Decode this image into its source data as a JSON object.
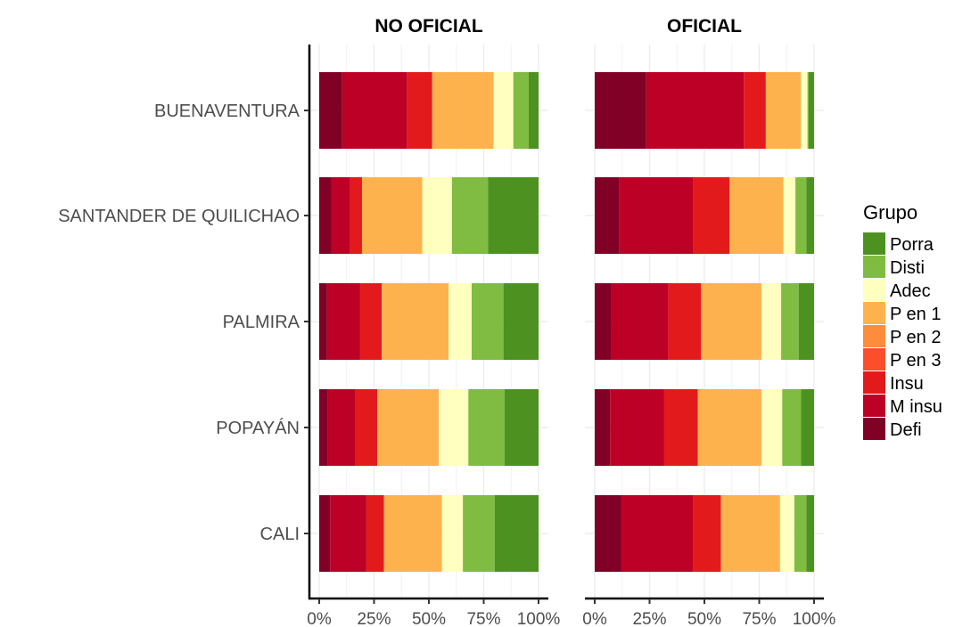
{
  "chart_data": {
    "type": "bar",
    "orientation": "horizontal",
    "stacked": true,
    "normalized": true,
    "categories": [
      "BUENAVENTURA",
      "SANTANDER DE QUILICHAO",
      "PALMIRA",
      "POPAYÁN",
      "CALI"
    ],
    "facets": [
      "NO OFICIAL",
      "OFICIAL"
    ],
    "x_ticks": [
      "0%",
      "25%",
      "50%",
      "75%",
      "100%"
    ],
    "xlim": [
      0,
      100
    ],
    "grid": true,
    "legend": {
      "title": "Grupo",
      "placement": "right",
      "items": [
        {
          "name": "Porra",
          "color": "#4d9221"
        },
        {
          "name": "Disti",
          "color": "#7fbc41"
        },
        {
          "name": "Adec",
          "color": "#ffffbf"
        },
        {
          "name": "P en 1",
          "color": "#fdb24e"
        },
        {
          "name": "P en 2",
          "color": "#fd8d3c"
        },
        {
          "name": "P en 3",
          "color": "#fc4e2a"
        },
        {
          "name": "Insu",
          "color": "#e31a1c"
        },
        {
          "name": "M insu",
          "color": "#bd0026"
        },
        {
          "name": "Defi",
          "color": "#800026"
        }
      ]
    },
    "stack_order": [
      "Defi",
      "M insu",
      "Insu",
      "P en 3",
      "P en 2",
      "P en 1",
      "Adec",
      "Disti",
      "Porra"
    ],
    "panels": [
      {
        "facet": "NO OFICIAL",
        "series": [
          {
            "name": "Defi",
            "values": [
              10.5,
              5.5,
              3.5,
              4.0,
              5.0
            ]
          },
          {
            "name": "M insu",
            "values": [
              29.5,
              8.5,
              15.0,
              12.5,
              16.5
            ]
          },
          {
            "name": "Insu",
            "values": [
              11.5,
              5.5,
              10.0,
              10.0,
              8.0
            ]
          },
          {
            "name": "P en 3",
            "values": [
              0,
              0,
              0,
              0,
              0
            ]
          },
          {
            "name": "P en 2",
            "values": [
              0,
              0,
              0,
              0,
              0
            ]
          },
          {
            "name": "P en 1",
            "values": [
              28.0,
              27.5,
              30.5,
              28.0,
              26.5
            ]
          },
          {
            "name": "Adec",
            "values": [
              9.0,
              13.5,
              10.5,
              13.5,
              9.5
            ]
          },
          {
            "name": "Disti",
            "values": [
              7.0,
              16.5,
              14.5,
              16.5,
              14.5
            ]
          },
          {
            "name": "Porra",
            "values": [
              4.5,
              23.0,
              16.0,
              15.5,
              20.0
            ]
          }
        ]
      },
      {
        "facet": "OFICIAL",
        "series": [
          {
            "name": "Defi",
            "values": [
              23.5,
              11.0,
              7.5,
              7.0,
              12.0
            ]
          },
          {
            "name": "M insu",
            "values": [
              44.5,
              34.0,
              26.0,
              24.5,
              33.0
            ]
          },
          {
            "name": "Insu",
            "values": [
              10.0,
              16.5,
              15.0,
              15.5,
              12.5
            ]
          },
          {
            "name": "P en 3",
            "values": [
              0,
              0,
              0,
              0,
              0
            ]
          },
          {
            "name": "P en 2",
            "values": [
              0,
              0,
              0,
              0,
              0
            ]
          },
          {
            "name": "P en 1",
            "values": [
              16.0,
              24.5,
              27.5,
              29.0,
              27.0
            ]
          },
          {
            "name": "Adec",
            "values": [
              3.0,
              5.5,
              9.0,
              9.5,
              6.5
            ]
          },
          {
            "name": "Disti",
            "values": [
              0.5,
              5.0,
              8.0,
              8.5,
              5.5
            ]
          },
          {
            "name": "Porra",
            "values": [
              2.5,
              3.5,
              7.0,
              6.0,
              3.5
            ]
          }
        ]
      }
    ]
  }
}
